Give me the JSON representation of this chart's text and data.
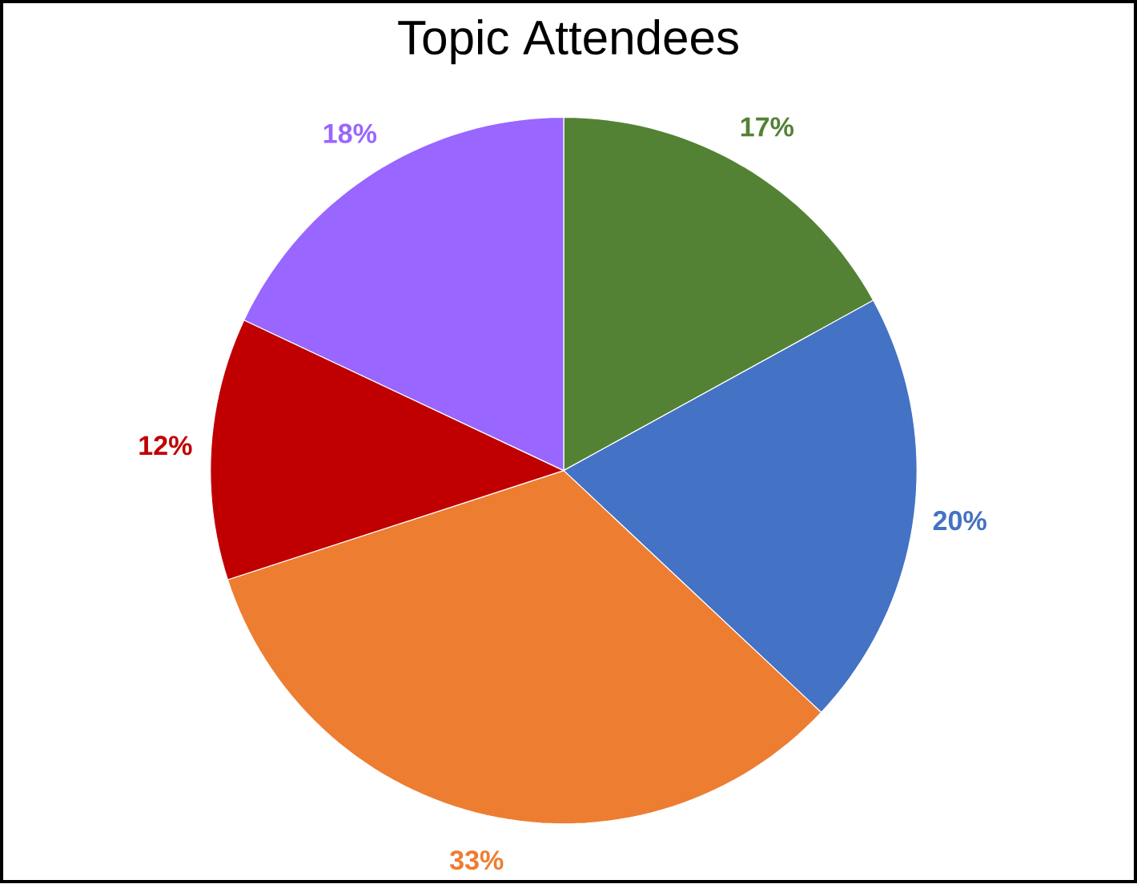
{
  "chart_data": {
    "type": "pie",
    "title": "Topic Attendees",
    "categories": [
      null,
      null,
      null,
      null,
      null
    ],
    "values": [
      17,
      20,
      33,
      12,
      18
    ],
    "colors": [
      "#548235",
      "#4472c4",
      "#ed7d31",
      "#c00000",
      "#9966ff"
    ],
    "value_labels": [
      "17%",
      "20%",
      "33%",
      "12%",
      "18%"
    ]
  }
}
